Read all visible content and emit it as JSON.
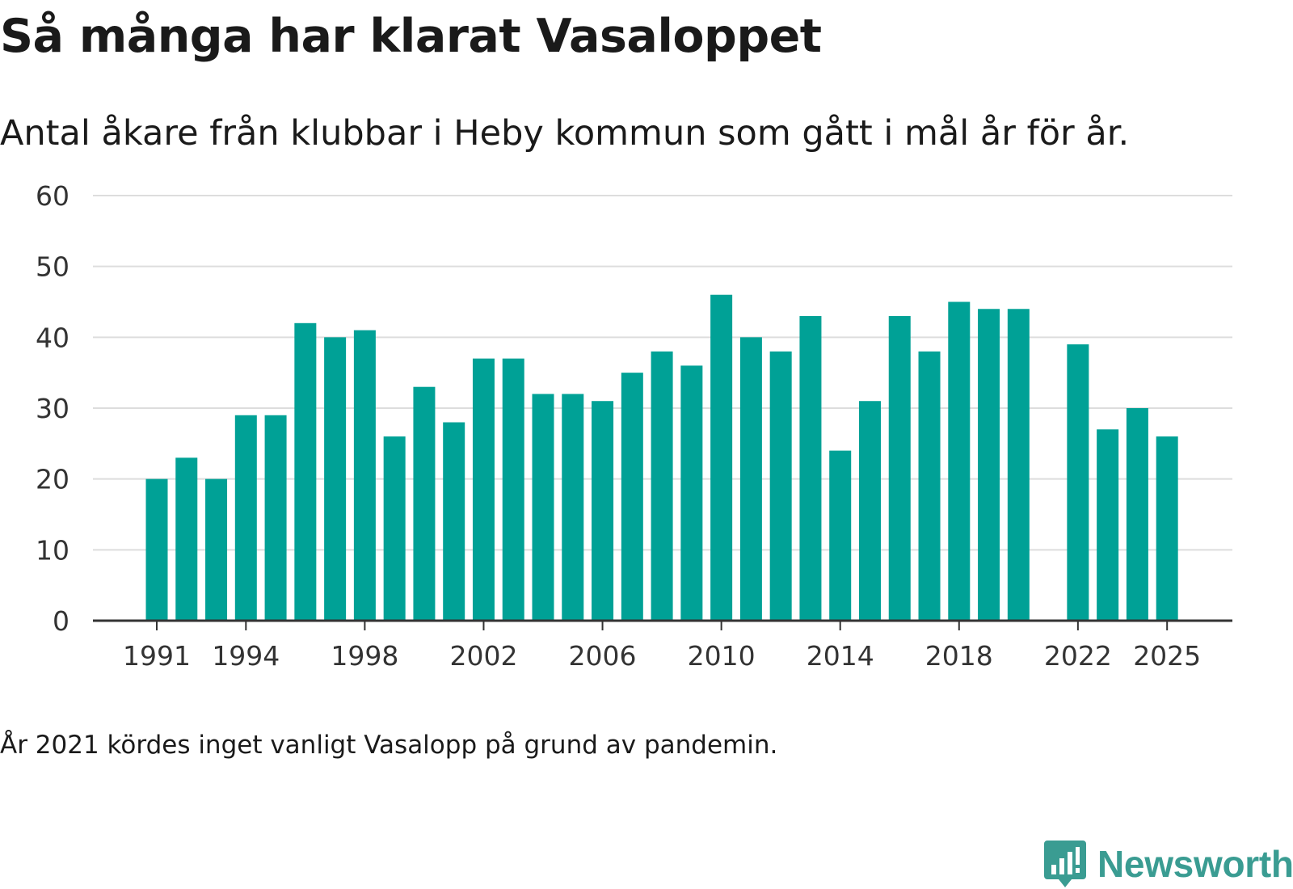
{
  "title": "Så många har klarat Vasaloppet",
  "subtitle": "Antal åkare från klubbar i Heby kommun som gått i mål år för år.",
  "note": "År 2021 kördes inget vanligt Vasalopp på grund av pandemin.",
  "brand": {
    "name": "Newsworthy",
    "icon": "newsworthy-logo-icon"
  },
  "colors": {
    "bar": "#00a196",
    "grid": "#dddddd",
    "axis": "#333333",
    "brand": "#3a9c92"
  },
  "chart_data": {
    "type": "bar",
    "title": "Så många har klarat Vasaloppet",
    "xlabel": "",
    "ylabel": "",
    "ylim": [
      0,
      60
    ],
    "yticks": [
      0,
      10,
      20,
      30,
      40,
      50,
      60
    ],
    "xticks": [
      1991,
      1994,
      1998,
      2002,
      2006,
      2010,
      2014,
      2018,
      2022,
      2025
    ],
    "grid": true,
    "categories": [
      1991,
      1992,
      1993,
      1994,
      1995,
      1996,
      1997,
      1998,
      1999,
      2000,
      2001,
      2002,
      2003,
      2004,
      2005,
      2006,
      2007,
      2008,
      2009,
      2010,
      2011,
      2012,
      2013,
      2014,
      2015,
      2016,
      2017,
      2018,
      2019,
      2020,
      2021,
      2022,
      2023,
      2024,
      2025
    ],
    "values": [
      20,
      23,
      20,
      29,
      29,
      42,
      40,
      41,
      26,
      33,
      28,
      37,
      37,
      32,
      32,
      31,
      35,
      38,
      36,
      46,
      40,
      38,
      43,
      24,
      31,
      43,
      38,
      45,
      44,
      44,
      null,
      39,
      27,
      30,
      26
    ]
  }
}
